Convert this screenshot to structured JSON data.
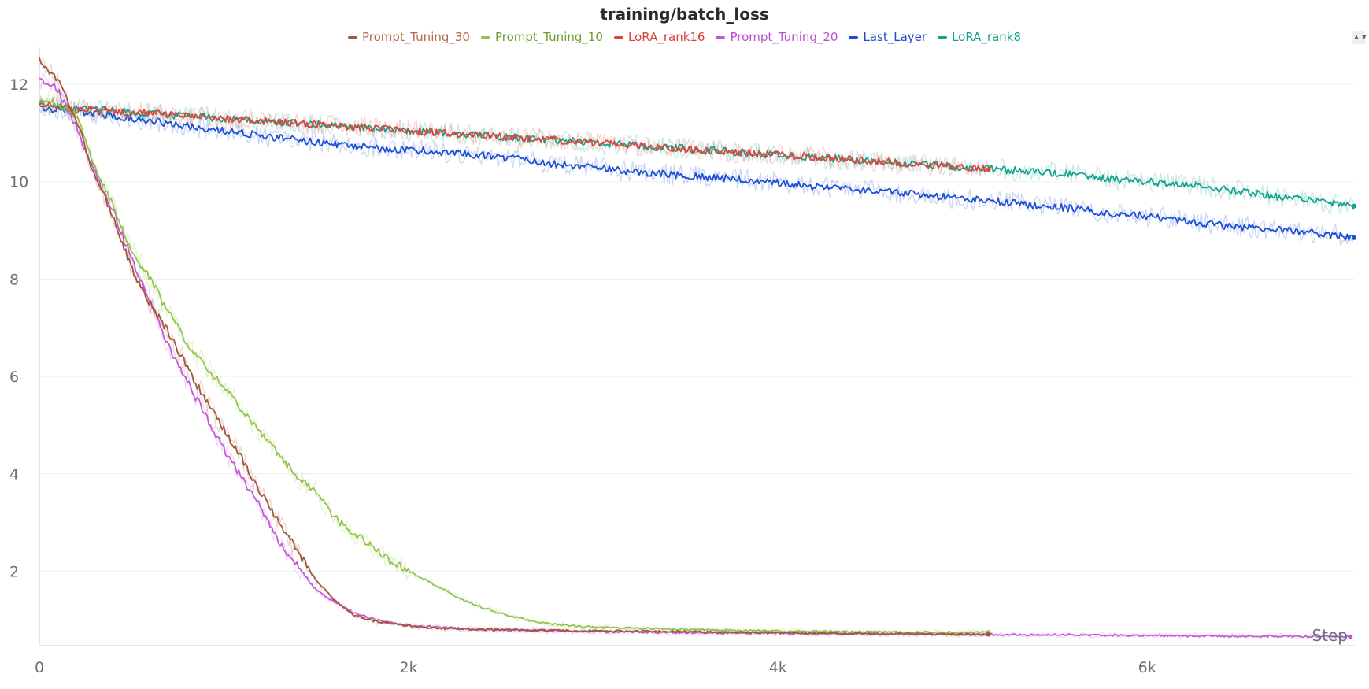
{
  "chart_data": {
    "type": "line",
    "title": "training/batch_loss",
    "xlabel": "Step",
    "ylabel": "",
    "xlim": [
      0,
      7120
    ],
    "ylim": [
      0.5,
      12.6
    ],
    "x_ticks": [
      0,
      2000,
      4000,
      6000
    ],
    "x_tick_labels": [
      "0",
      "2k",
      "4k",
      "6k"
    ],
    "y_ticks": [
      2,
      4,
      6,
      8,
      10,
      12
    ],
    "y_tick_labels": [
      "2",
      "4",
      "6",
      "8",
      "10",
      "12"
    ],
    "grid": "horizontal",
    "legend_position": "top-center",
    "series": [
      {
        "name": "Prompt_Tuning_30",
        "color": "#a0583c",
        "label_color": "#b26a4f",
        "points": [
          [
            0,
            12.5
          ],
          [
            100,
            12.1
          ],
          [
            200,
            11.3
          ],
          [
            300,
            10.1
          ],
          [
            400,
            9.3
          ],
          [
            500,
            8.2
          ],
          [
            600,
            7.5
          ],
          [
            700,
            6.9
          ],
          [
            800,
            6.2
          ],
          [
            900,
            5.5
          ],
          [
            1000,
            4.9
          ],
          [
            1100,
            4.3
          ],
          [
            1200,
            3.6
          ],
          [
            1300,
            3.0
          ],
          [
            1400,
            2.4
          ],
          [
            1500,
            1.8
          ],
          [
            1600,
            1.4
          ],
          [
            1700,
            1.1
          ],
          [
            1800,
            0.98
          ],
          [
            1900,
            0.93
          ],
          [
            2000,
            0.88
          ],
          [
            2100,
            0.84
          ],
          [
            2200,
            0.82
          ],
          [
            2400,
            0.8
          ],
          [
            2600,
            0.79
          ],
          [
            2800,
            0.78
          ],
          [
            3000,
            0.77
          ],
          [
            3400,
            0.76
          ],
          [
            3800,
            0.74
          ],
          [
            4200,
            0.72
          ],
          [
            4600,
            0.71
          ],
          [
            5000,
            0.7
          ],
          [
            5140,
            0.7
          ]
        ]
      },
      {
        "name": "Prompt_Tuning_10",
        "color": "#8fc749",
        "label_color": "#6b9a2e",
        "points": [
          [
            0,
            11.7
          ],
          [
            100,
            11.6
          ],
          [
            200,
            11.4
          ],
          [
            300,
            10.3
          ],
          [
            400,
            9.5
          ],
          [
            500,
            8.6
          ],
          [
            600,
            8.0
          ],
          [
            700,
            7.3
          ],
          [
            800,
            6.7
          ],
          [
            900,
            6.2
          ],
          [
            1000,
            5.8
          ],
          [
            1100,
            5.3
          ],
          [
            1200,
            4.8
          ],
          [
            1300,
            4.4
          ],
          [
            1400,
            3.9
          ],
          [
            1500,
            3.6
          ],
          [
            1600,
            3.1
          ],
          [
            1700,
            2.8
          ],
          [
            1800,
            2.5
          ],
          [
            1900,
            2.2
          ],
          [
            2000,
            2.0
          ],
          [
            2100,
            1.8
          ],
          [
            2200,
            1.6
          ],
          [
            2300,
            1.4
          ],
          [
            2400,
            1.25
          ],
          [
            2500,
            1.13
          ],
          [
            2600,
            1.03
          ],
          [
            2700,
            0.95
          ],
          [
            2800,
            0.9
          ],
          [
            3000,
            0.85
          ],
          [
            3400,
            0.81
          ],
          [
            3800,
            0.78
          ],
          [
            4200,
            0.76
          ],
          [
            4600,
            0.75
          ],
          [
            5000,
            0.74
          ],
          [
            5140,
            0.74
          ]
        ]
      },
      {
        "name": "LoRA_rank16",
        "color": "#e1453c",
        "label_color": "#d9403a",
        "points": [
          [
            0,
            11.6
          ],
          [
            200,
            11.5
          ],
          [
            400,
            11.45
          ],
          [
            600,
            11.4
          ],
          [
            800,
            11.35
          ],
          [
            1000,
            11.3
          ],
          [
            1200,
            11.25
          ],
          [
            1400,
            11.2
          ],
          [
            1600,
            11.15
          ],
          [
            1800,
            11.1
          ],
          [
            2000,
            11.05
          ],
          [
            2200,
            11.0
          ],
          [
            2400,
            10.95
          ],
          [
            2600,
            10.9
          ],
          [
            2800,
            10.85
          ],
          [
            3000,
            10.8
          ],
          [
            3200,
            10.75
          ],
          [
            3400,
            10.7
          ],
          [
            3600,
            10.65
          ],
          [
            3800,
            10.6
          ],
          [
            4000,
            10.55
          ],
          [
            4200,
            10.5
          ],
          [
            4400,
            10.45
          ],
          [
            4600,
            10.4
          ],
          [
            4800,
            10.35
          ],
          [
            5000,
            10.3
          ],
          [
            5140,
            10.25
          ]
        ]
      },
      {
        "name": "Prompt_Tuning_20",
        "color": "#c359d6",
        "label_color": "#b84fcc",
        "points": [
          [
            0,
            12.1
          ],
          [
            100,
            11.9
          ],
          [
            200,
            11.1
          ],
          [
            300,
            10.2
          ],
          [
            400,
            9.4
          ],
          [
            500,
            8.4
          ],
          [
            600,
            7.5
          ],
          [
            700,
            6.6
          ],
          [
            800,
            5.9
          ],
          [
            900,
            5.2
          ],
          [
            1000,
            4.5
          ],
          [
            1100,
            3.9
          ],
          [
            1200,
            3.3
          ],
          [
            1300,
            2.6
          ],
          [
            1400,
            2.1
          ],
          [
            1500,
            1.6
          ],
          [
            1600,
            1.35
          ],
          [
            1700,
            1.15
          ],
          [
            1800,
            1.02
          ],
          [
            1900,
            0.94
          ],
          [
            2000,
            0.88
          ],
          [
            2200,
            0.84
          ],
          [
            2400,
            0.8
          ],
          [
            2600,
            0.78
          ],
          [
            2800,
            0.77
          ],
          [
            3000,
            0.76
          ],
          [
            3400,
            0.74
          ],
          [
            3800,
            0.73
          ],
          [
            4200,
            0.72
          ],
          [
            4600,
            0.71
          ],
          [
            5000,
            0.7
          ],
          [
            5400,
            0.69
          ],
          [
            5800,
            0.68
          ],
          [
            6200,
            0.67
          ],
          [
            6600,
            0.66
          ],
          [
            7000,
            0.66
          ],
          [
            7100,
            0.65
          ]
        ]
      },
      {
        "name": "Last_Layer",
        "color": "#1c4fd6",
        "label_color": "#1a4cc8",
        "points": [
          [
            0,
            11.5
          ],
          [
            200,
            11.45
          ],
          [
            400,
            11.35
          ],
          [
            600,
            11.25
          ],
          [
            800,
            11.15
          ],
          [
            1000,
            11.05
          ],
          [
            1200,
            10.95
          ],
          [
            1400,
            10.85
          ],
          [
            1600,
            10.78
          ],
          [
            1800,
            10.7
          ],
          [
            2000,
            10.65
          ],
          [
            2200,
            10.6
          ],
          [
            2400,
            10.55
          ],
          [
            2600,
            10.45
          ],
          [
            2800,
            10.35
          ],
          [
            3000,
            10.3
          ],
          [
            3200,
            10.2
          ],
          [
            3400,
            10.15
          ],
          [
            3600,
            10.1
          ],
          [
            3800,
            10.05
          ],
          [
            4000,
            9.98
          ],
          [
            4200,
            9.9
          ],
          [
            4400,
            9.85
          ],
          [
            4600,
            9.78
          ],
          [
            4800,
            9.72
          ],
          [
            5000,
            9.65
          ],
          [
            5200,
            9.6
          ],
          [
            5400,
            9.5
          ],
          [
            5600,
            9.45
          ],
          [
            5800,
            9.35
          ],
          [
            6000,
            9.3
          ],
          [
            6200,
            9.2
          ],
          [
            6400,
            9.1
          ],
          [
            6600,
            9.05
          ],
          [
            6800,
            8.98
          ],
          [
            7000,
            8.9
          ],
          [
            7120,
            8.85
          ]
        ]
      },
      {
        "name": "LoRA_rank8",
        "color": "#12a48d",
        "label_color": "#14a08a",
        "points": [
          [
            0,
            11.6
          ],
          [
            200,
            11.5
          ],
          [
            400,
            11.45
          ],
          [
            600,
            11.4
          ],
          [
            800,
            11.35
          ],
          [
            1000,
            11.3
          ],
          [
            1200,
            11.25
          ],
          [
            1400,
            11.2
          ],
          [
            1600,
            11.15
          ],
          [
            1800,
            11.1
          ],
          [
            2000,
            11.05
          ],
          [
            2200,
            11.0
          ],
          [
            2400,
            10.95
          ],
          [
            2600,
            10.9
          ],
          [
            2800,
            10.85
          ],
          [
            3000,
            10.8
          ],
          [
            3200,
            10.75
          ],
          [
            3400,
            10.7
          ],
          [
            3600,
            10.65
          ],
          [
            3800,
            10.6
          ],
          [
            4000,
            10.55
          ],
          [
            4200,
            10.5
          ],
          [
            4400,
            10.45
          ],
          [
            4600,
            10.4
          ],
          [
            4800,
            10.35
          ],
          [
            5000,
            10.3
          ],
          [
            5200,
            10.25
          ],
          [
            5400,
            10.2
          ],
          [
            5600,
            10.15
          ],
          [
            5800,
            10.05
          ],
          [
            6000,
            10.0
          ],
          [
            6200,
            9.95
          ],
          [
            6400,
            9.85
          ],
          [
            6600,
            9.75
          ],
          [
            6800,
            9.65
          ],
          [
            7000,
            9.55
          ],
          [
            7120,
            9.5
          ]
        ]
      }
    ]
  }
}
